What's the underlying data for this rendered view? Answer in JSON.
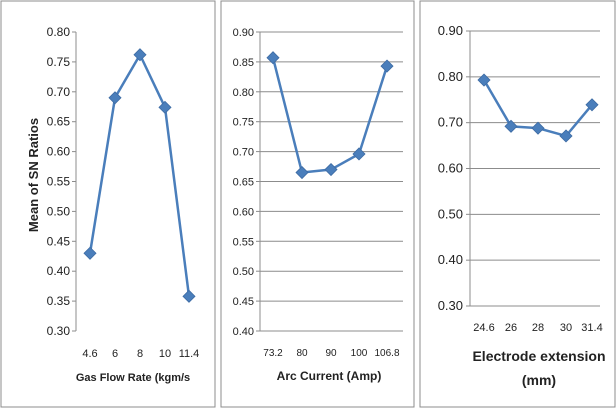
{
  "chart_data": [
    {
      "type": "line",
      "title": "",
      "xlabel": "Gas Flow Rate (kgm/s",
      "ylabel": "Mean of SN Ratios",
      "categories": [
        "4.6",
        "6",
        "8",
        "10",
        "11.4"
      ],
      "values": [
        0.43,
        0.69,
        0.762,
        0.674,
        0.358
      ],
      "ylim": [
        0.3,
        0.8
      ],
      "yticks": [
        "0.80",
        "0.75",
        "0.70",
        "0.65",
        "0.60",
        "0.55",
        "0.50",
        "0.45",
        "0.40",
        "0.35",
        "0.30"
      ],
      "grid": false
    },
    {
      "type": "line",
      "title": "",
      "xlabel": "Arc Current (Amp)",
      "ylabel": "",
      "categories": [
        "73.2",
        "80",
        "90",
        "100",
        "106.8"
      ],
      "values": [
        0.857,
        0.665,
        0.67,
        0.696,
        0.843
      ],
      "ylim": [
        0.4,
        0.9
      ],
      "yticks": [
        "0.90",
        "0.85",
        "0.80",
        "0.75",
        "0.70",
        "0.65",
        "0.60",
        "0.55",
        "0.50",
        "0.45",
        "0.40"
      ],
      "grid": true,
      "gridline": "0.50"
    },
    {
      "type": "line",
      "title": "",
      "xlabel": "Electrode extension (mm)",
      "xlabel_lines": [
        "Electrode extension",
        "(mm)"
      ],
      "ylabel": "",
      "categories": [
        "24.6",
        "26",
        "28",
        "30",
        "31.4"
      ],
      "values": [
        0.793,
        0.692,
        0.688,
        0.671,
        0.739
      ],
      "ylim": [
        0.3,
        0.9
      ],
      "yticks": [
        "0.90",
        "0.80",
        "0.70",
        "0.60",
        "0.50",
        "0.40",
        "0.30"
      ],
      "grid": true
    }
  ],
  "colors": {
    "series": "#4a7ebb",
    "grid": "#8c8c8c",
    "frame": "#7f7f7f"
  }
}
